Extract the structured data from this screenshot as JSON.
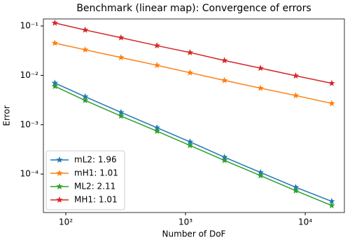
{
  "chart_data": {
    "type": "line",
    "title": "Benchmark (linear map): Convergence of errors",
    "x_label": "Number of DoF",
    "y_label": "Error",
    "x": [
      81,
      145,
      289,
      577,
      1089,
      2113,
      4225,
      8321,
      16641
    ],
    "xscale": "log",
    "yscale": "log",
    "xlim": [
      65,
      21230
    ],
    "ylim": [
      1.66e-05,
      0.139
    ],
    "xticks": [
      {
        "value": 100,
        "label": "10²"
      },
      {
        "value": 1000,
        "label": "10³"
      },
      {
        "value": 10000,
        "label": "10⁴"
      }
    ],
    "yticks": [
      {
        "value": 0.0001,
        "label": "10⁻⁴"
      },
      {
        "value": 0.001,
        "label": "10⁻³"
      },
      {
        "value": 0.01,
        "label": "10⁻²"
      },
      {
        "value": 0.1,
        "label": "10⁻¹"
      }
    ],
    "legend": "lower left",
    "series": [
      {
        "name": "mL2: 1.96",
        "color": "#1f77b4",
        "values": [
          0.007,
          0.0037,
          0.00178,
          0.00087,
          0.00045,
          0.00022,
          0.000108,
          5.4e-05,
          2.8e-05
        ]
      },
      {
        "name": "mH1: 1.01",
        "color": "#ff7f0e",
        "values": [
          0.045,
          0.033,
          0.023,
          0.016,
          0.0113,
          0.0079,
          0.0055,
          0.0039,
          0.0027
        ]
      },
      {
        "name": "ML2: 2.11",
        "color": "#2ca02c",
        "values": [
          0.006,
          0.0031,
          0.0015,
          0.00074,
          0.00038,
          0.000189,
          9.3e-05,
          4.6e-05,
          2.3e-05
        ]
      },
      {
        "name": "MH1: 1.01",
        "color": "#d62728",
        "values": [
          0.115,
          0.083,
          0.058,
          0.04,
          0.029,
          0.02,
          0.014,
          0.0098,
          0.0069
        ]
      }
    ]
  }
}
